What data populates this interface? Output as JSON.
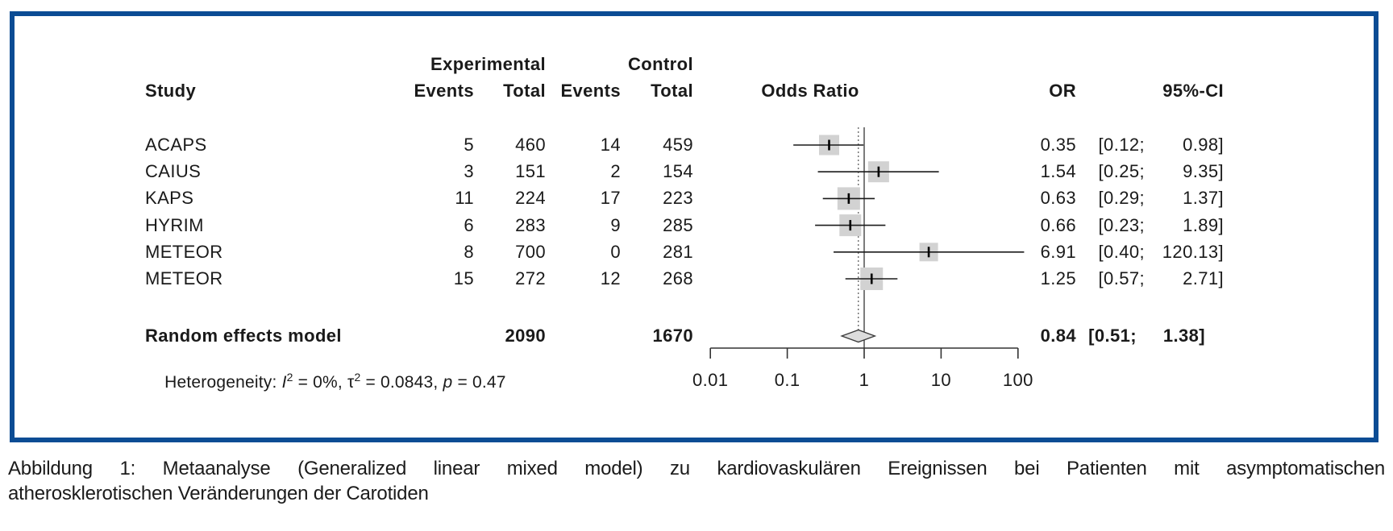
{
  "figure": {
    "border_color": "#0b4c94",
    "header": {
      "group_experimental": "Experimental",
      "group_control": "Control",
      "study": "Study",
      "exp_events": "Events",
      "exp_total": "Total",
      "ctrl_events": "Events",
      "ctrl_total": "Total",
      "odds_ratio": "Odds Ratio",
      "or": "OR",
      "ci": "95%-CI"
    },
    "summary_row": {
      "label": "Random effects model",
      "exp_total": "2090",
      "ctrl_total": "1670",
      "or_label": "0.84",
      "ci_low_label": "[0.51;",
      "ci_high_label": "1.38]"
    },
    "heterogeneity": {
      "prefix": "Heterogeneity: ",
      "i_symbol": "I",
      "i_sup": "2",
      "i_rest": " = 0%, ",
      "tau_symbol": "τ",
      "tau_sup": "2",
      "tau_rest": " = 0.0843, ",
      "p_symbol": "p",
      "p_rest": " = 0.47"
    }
  },
  "caption": {
    "line1": "Abbildung 1: Metaanalyse (Generalized linear mixed model) zu kardiovaskulären Ereignissen bei Patienten mit asymptomatischen",
    "line2": "atherosklerotischen Veränderungen der Carotiden"
  },
  "chart_data": {
    "type": "forest",
    "effect_measure": "Odds Ratio",
    "x_scale": "log",
    "x_ticks": [
      0.01,
      0.1,
      1,
      10,
      100
    ],
    "x_tick_labels": [
      "0.01",
      "0.1",
      "1",
      "10",
      "100"
    ],
    "reference_line": 1,
    "pooled_dashed_line": 0.84,
    "studies": [
      {
        "study": "ACAPS",
        "exp_events": "5",
        "exp_total": "460",
        "ctrl_events": "14",
        "ctrl_total": "459",
        "or": 0.35,
        "ci_low": 0.12,
        "ci_high": 0.98,
        "or_label": "0.35",
        "ci_low_label": "[0.12;",
        "ci_high_label": "0.98]",
        "square": 25
      },
      {
        "study": "CAIUS",
        "exp_events": "3",
        "exp_total": "151",
        "ctrl_events": "2",
        "ctrl_total": "154",
        "or": 1.54,
        "ci_low": 0.25,
        "ci_high": 9.35,
        "or_label": "1.54",
        "ci_low_label": "[0.25;",
        "ci_high_label": "9.35]",
        "square": 26
      },
      {
        "study": "KAPS",
        "exp_events": "11",
        "exp_total": "224",
        "ctrl_events": "17",
        "ctrl_total": "223",
        "or": 0.63,
        "ci_low": 0.29,
        "ci_high": 1.37,
        "or_label": "0.63",
        "ci_low_label": "[0.29;",
        "ci_high_label": "1.37]",
        "square": 28
      },
      {
        "study": "HYRIM",
        "exp_events": "6",
        "exp_total": "283",
        "ctrl_events": "9",
        "ctrl_total": "285",
        "or": 0.66,
        "ci_low": 0.23,
        "ci_high": 1.89,
        "or_label": "0.66",
        "ci_low_label": "[0.23;",
        "ci_high_label": "1.89]",
        "square": 27
      },
      {
        "study": "METEOR",
        "exp_events": "8",
        "exp_total": "700",
        "ctrl_events": "0",
        "ctrl_total": "281",
        "or": 6.91,
        "ci_low": 0.4,
        "ci_high": 120.13,
        "or_label": "6.91",
        "ci_low_label": "[0.40;",
        "ci_high_label": "120.13]",
        "square": 23
      },
      {
        "study": "METEOR",
        "exp_events": "15",
        "exp_total": "272",
        "ctrl_events": "12",
        "ctrl_total": "268",
        "or": 1.25,
        "ci_low": 0.57,
        "ci_high": 2.71,
        "or_label": "1.25",
        "ci_low_label": "[0.57;",
        "ci_high_label": "2.71]",
        "square": 28
      }
    ],
    "summary": {
      "label": "Random effects model",
      "exp_total": 2090,
      "ctrl_total": 1670,
      "or": 0.84,
      "ci_low": 0.51,
      "ci_high": 1.38
    }
  }
}
